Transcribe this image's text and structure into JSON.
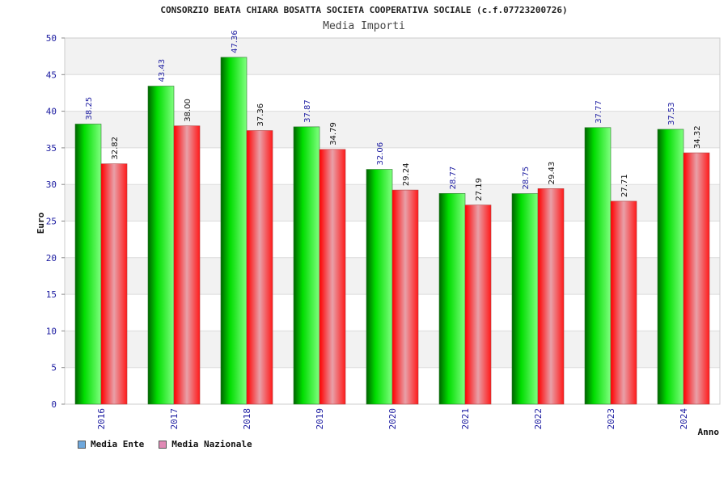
{
  "chart_data": {
    "type": "bar",
    "title": "CONSORZIO BEATA CHIARA BOSATTA SOCIETA COOPERATIVA SOCIALE (c.f.07723200726)",
    "subtitle": "Media Importi",
    "xlabel": "Anno",
    "ylabel": "Euro",
    "ylim": [
      0,
      50
    ],
    "yticks": [
      "0",
      "5",
      "10",
      "15",
      "20",
      "25",
      "30",
      "35",
      "40",
      "45",
      "50"
    ],
    "categories": [
      "2016",
      "2017",
      "2018",
      "2019",
      "2020",
      "2021",
      "2022",
      "2023",
      "2024"
    ],
    "series": [
      {
        "name": "Media Ente",
        "legend_color": "#6fa8dc",
        "colors": [
          "#006400",
          "#00dd00",
          "#7fff7f"
        ],
        "values": [
          38.25,
          43.43,
          47.36,
          37.87,
          32.06,
          28.77,
          28.75,
          37.77,
          37.53
        ],
        "labels": [
          "38.25",
          "43.43",
          "47.36",
          "37.87",
          "32.06",
          "28.77",
          "28.75",
          "37.77",
          "37.53"
        ]
      },
      {
        "name": "Media Nazionale",
        "legend_color": "#e08ab5",
        "colors": [
          "#ff0000",
          "#e8a0a8",
          "#ff1a1a"
        ],
        "values": [
          32.82,
          38.0,
          37.36,
          34.79,
          29.24,
          27.19,
          29.43,
          27.71,
          34.32
        ],
        "labels": [
          "32.82",
          "38.00",
          "37.36",
          "34.79",
          "29.24",
          "27.19",
          "29.43",
          "27.71",
          "34.32"
        ]
      }
    ],
    "grid": true,
    "legend_position": "bottom-left"
  }
}
